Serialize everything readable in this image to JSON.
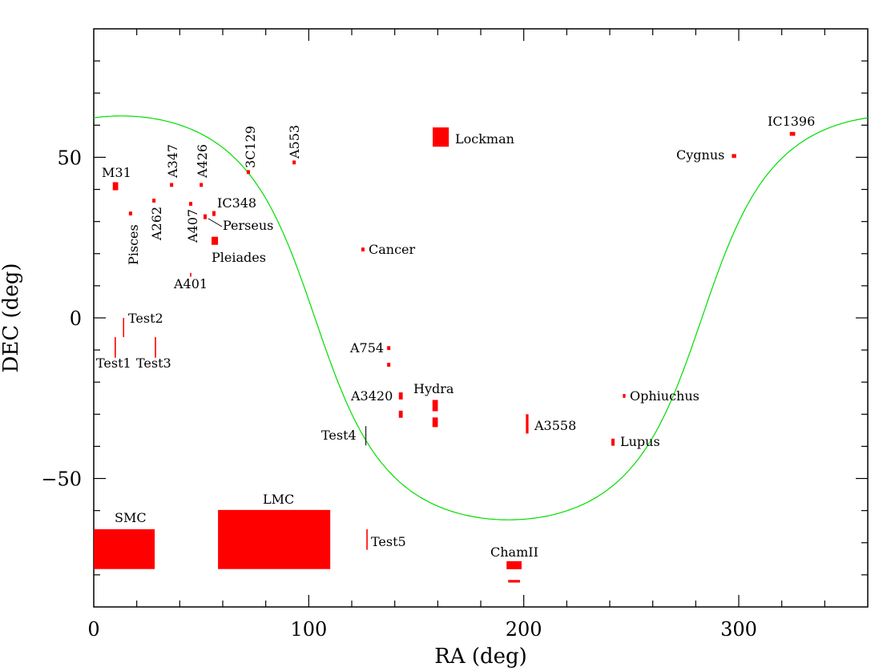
{
  "chart_data": {
    "type": "scatter",
    "title": "",
    "xlabel": "RA (deg)",
    "ylabel": "DEC (deg)",
    "xlim": [
      0,
      360
    ],
    "ylim": [
      -90,
      90
    ],
    "xticks": [
      0,
      100,
      200,
      300
    ],
    "yticks": [
      -50,
      0,
      50
    ],
    "x_minor_step": 20,
    "y_minor_step": 10,
    "grid": false,
    "colors": {
      "fields": "#ff0000",
      "galactic_plane": "#00dd00",
      "axes": "#000000"
    },
    "galactic_plane": {
      "name": "Galactic plane (b=0)",
      "pole_ra": 192.86,
      "pole_dec": 27.13
    },
    "fields": [
      {
        "name": "M31",
        "ra": 10.1,
        "dec": 41.0,
        "w": 2.5,
        "h": 2.5
      },
      {
        "name": "Pisces",
        "ra": 17.1,
        "dec": 32.5,
        "w": 1.5,
        "h": 1.2
      },
      {
        "name": "A262",
        "ra": 28.0,
        "dec": 36.5,
        "w": 1.5,
        "h": 1.2
      },
      {
        "name": "A347",
        "ra": 36.2,
        "dec": 41.4,
        "w": 1.5,
        "h": 1.2
      },
      {
        "name": "A407",
        "ra": 45.1,
        "dec": 35.5,
        "w": 1.5,
        "h": 1.2
      },
      {
        "name": "A426",
        "ra": 50.0,
        "dec": 41.4,
        "w": 1.5,
        "h": 1.2
      },
      {
        "name": "IC348",
        "ra": 55.9,
        "dec": 32.5,
        "w": 1.5,
        "h": 1.5
      },
      {
        "name": "Perseus",
        "ra": 51.8,
        "dec": 31.5,
        "w": 1.5,
        "h": 1.5
      },
      {
        "name": "Pleiades",
        "ra": 56.3,
        "dec": 24.0,
        "w": 3.0,
        "h": 2.5
      },
      {
        "name": "A401",
        "ra": 45.1,
        "dec": 13.4,
        "w": 0.6,
        "h": 1.2
      },
      {
        "name": "3C129",
        "ra": 71.9,
        "dec": 45.4,
        "w": 1.5,
        "h": 1.2
      },
      {
        "name": "A553",
        "ra": 93.2,
        "dec": 48.4,
        "w": 1.5,
        "h": 1.2
      },
      {
        "name": "Lockman",
        "ra": 161.4,
        "dec": 56.3,
        "w": 7.5,
        "h": 6.0
      },
      {
        "name": "Cancer",
        "ra": 125.2,
        "dec": 21.3,
        "w": 1.5,
        "h": 1.2
      },
      {
        "name": "A754",
        "ra": 137.2,
        "dec": -9.4,
        "w": 1.5,
        "h": 1.2
      },
      {
        "name": "A754",
        "ra": 137.2,
        "dec": -14.6,
        "w": 1.5,
        "h": 1.2
      },
      {
        "name": "A3420",
        "ra": 142.8,
        "dec": -24.3,
        "w": 1.8,
        "h": 2.2
      },
      {
        "name": "A3420",
        "ra": 142.8,
        "dec": -30.0,
        "w": 1.8,
        "h": 2.2
      },
      {
        "name": "Hydra",
        "ra": 158.8,
        "dec": -27.3,
        "w": 2.5,
        "h": 3.5
      },
      {
        "name": "Hydra",
        "ra": 158.8,
        "dec": -32.5,
        "w": 2.5,
        "h": 3.0
      },
      {
        "name": "A3558",
        "ra": 201.6,
        "dec": -33.0,
        "w": 1.2,
        "h": 6.0
      },
      {
        "name": "Ophiuchus",
        "ra": 246.7,
        "dec": -24.3,
        "w": 1.2,
        "h": 1.2
      },
      {
        "name": "Lupus",
        "ra": 241.5,
        "dec": -38.7,
        "w": 1.5,
        "h": 2.2
      },
      {
        "name": "Cygnus",
        "ra": 297.8,
        "dec": 50.4,
        "w": 2.0,
        "h": 1.2
      },
      {
        "name": "IC1396",
        "ra": 325.0,
        "dec": 57.3,
        "w": 2.5,
        "h": 1.2
      },
      {
        "name": "Test1",
        "ra": 10.0,
        "dec": -9.2,
        "w": 0.6,
        "h": 6.4
      },
      {
        "name": "Test2",
        "ra": 13.8,
        "dec": -3.0,
        "w": 0.4,
        "h": 6.0
      },
      {
        "name": "Test3",
        "ra": 28.7,
        "dec": -9.2,
        "w": 0.6,
        "h": 6.4
      },
      {
        "name": "Test4",
        "ra": 126.4,
        "dec": -36.7,
        "w": 0.3,
        "h": 6.0
      },
      {
        "name": "Test5",
        "ra": 127.1,
        "dec": -69.0,
        "w": 0.6,
        "h": 6.4
      },
      {
        "name": "SMC",
        "ra": 14.2,
        "dec": -72.0,
        "w": 28.3,
        "h": 12.4
      },
      {
        "name": "LMC",
        "ra": 83.9,
        "dec": -69.0,
        "w": 52.2,
        "h": 18.4
      },
      {
        "name": "ChamII",
        "ra": 195.5,
        "dec": -77.0,
        "w": 7.0,
        "h": 2.5
      },
      {
        "name": "ChamII",
        "ra": 195.5,
        "dec": -82.0,
        "w": 5.5,
        "h": 0.8
      }
    ],
    "labels": [
      "M31",
      "Pisces",
      "A262",
      "A347",
      "A407",
      "A426",
      "IC348",
      "Perseus",
      "Pleiades",
      "A401",
      "3C129",
      "A553",
      "Lockman",
      "Cancer",
      "A754",
      "A3420",
      "Hydra",
      "A3558",
      "Ophiuchus",
      "Lupus",
      "Cygnus",
      "IC1396",
      "Test1",
      "Test2",
      "Test3",
      "Test4",
      "Test5",
      "SMC",
      "LMC",
      "ChamII"
    ]
  }
}
